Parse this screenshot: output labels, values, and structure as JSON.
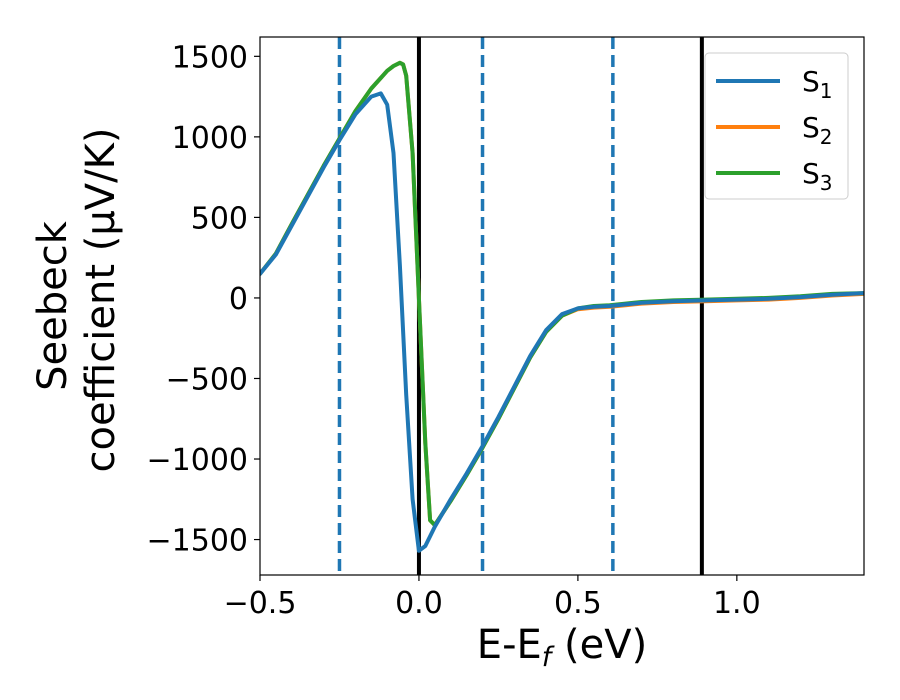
{
  "chart_data": {
    "type": "line",
    "xlabel": "E-E",
    "xlabel_sub": "f",
    "xlabel_unit": " (eV)",
    "ylabel_line1": "Seebeck",
    "ylabel_line2": "coefficient  (μV/K)",
    "xlim": [
      -0.5,
      1.4
    ],
    "ylim": [
      -1720,
      1620
    ],
    "xticks": [
      -0.5,
      0.0,
      0.5,
      1.0
    ],
    "xtick_labels": [
      "−0.5",
      "0.0",
      "0.5",
      "1.0"
    ],
    "yticks": [
      1500,
      1000,
      500,
      0,
      -500,
      -1000,
      -1500
    ],
    "ytick_labels": [
      "1500",
      "1000",
      "500",
      "0",
      "−500",
      "−1000",
      "−1500"
    ],
    "legend_placement": "top-right",
    "grid": false,
    "vlines": [
      {
        "x": -0.25,
        "style": "dashed",
        "color": "#1f77b4"
      },
      {
        "x": 0.0,
        "style": "solid",
        "color": "#000000"
      },
      {
        "x": 0.2,
        "style": "dashed",
        "color": "#1f77b4"
      },
      {
        "x": 0.61,
        "style": "dashed",
        "color": "#1f77b4"
      },
      {
        "x": 0.89,
        "style": "solid",
        "color": "#000000"
      }
    ],
    "series": [
      {
        "name": "S",
        "sub": "1",
        "color": "#1f77b4",
        "x": [
          -0.5,
          -0.45,
          -0.4,
          -0.35,
          -0.3,
          -0.25,
          -0.2,
          -0.15,
          -0.12,
          -0.1,
          -0.08,
          -0.06,
          -0.04,
          -0.02,
          0.0,
          0.02,
          0.05,
          0.1,
          0.15,
          0.2,
          0.25,
          0.3,
          0.35,
          0.4,
          0.45,
          0.5,
          0.55,
          0.6,
          0.65,
          0.7,
          0.8,
          0.9,
          1.0,
          1.1,
          1.2,
          1.3,
          1.4
        ],
        "y": [
          150,
          270,
          450,
          630,
          810,
          980,
          1140,
          1250,
          1270,
          1200,
          900,
          200,
          -600,
          -1250,
          -1570,
          -1540,
          -1420,
          -1250,
          -1090,
          -920,
          -740,
          -550,
          -360,
          -200,
          -100,
          -65,
          -55,
          -50,
          -40,
          -30,
          -20,
          -15,
          -10,
          -5,
          5,
          20,
          30
        ]
      },
      {
        "name": "S",
        "sub": "2",
        "color": "#ff7f0e",
        "x": [
          -0.5,
          -0.45,
          -0.4,
          -0.35,
          -0.3,
          -0.25,
          -0.2,
          -0.15,
          -0.1,
          -0.08,
          -0.06,
          -0.05,
          -0.04,
          -0.02,
          0.0,
          0.02,
          0.035,
          0.05,
          0.1,
          0.15,
          0.2,
          0.25,
          0.3,
          0.35,
          0.4,
          0.45,
          0.5,
          0.55,
          0.6,
          0.65,
          0.7,
          0.8,
          0.9,
          1.0,
          1.1,
          1.2,
          1.3,
          1.4
        ],
        "y": [
          150,
          275,
          460,
          640,
          820,
          990,
          1160,
          1300,
          1410,
          1440,
          1460,
          1450,
          1380,
          900,
          0,
          -900,
          -1380,
          -1410,
          -1260,
          -1100,
          -930,
          -750,
          -560,
          -370,
          -210,
          -110,
          -70,
          -60,
          -55,
          -45,
          -35,
          -25,
          -20,
          -15,
          -10,
          0,
          15,
          25
        ]
      },
      {
        "name": "S",
        "sub": "3",
        "color": "#2ca02c",
        "x": [
          -0.5,
          -0.45,
          -0.4,
          -0.35,
          -0.3,
          -0.25,
          -0.2,
          -0.15,
          -0.1,
          -0.08,
          -0.06,
          -0.05,
          -0.04,
          -0.02,
          0.0,
          0.02,
          0.035,
          0.05,
          0.1,
          0.15,
          0.2,
          0.25,
          0.3,
          0.35,
          0.4,
          0.45,
          0.5,
          0.55,
          0.6,
          0.65,
          0.7,
          0.8,
          0.9,
          1.0,
          1.1,
          1.2,
          1.3,
          1.4
        ],
        "y": [
          150,
          275,
          460,
          640,
          820,
          990,
          1160,
          1300,
          1410,
          1440,
          1460,
          1450,
          1380,
          900,
          0,
          -900,
          -1380,
          -1410,
          -1260,
          -1100,
          -930,
          -750,
          -560,
          -370,
          -210,
          -110,
          -65,
          -50,
          -45,
          -35,
          -25,
          -15,
          -10,
          -5,
          0,
          10,
          25,
          30
        ]
      }
    ]
  }
}
